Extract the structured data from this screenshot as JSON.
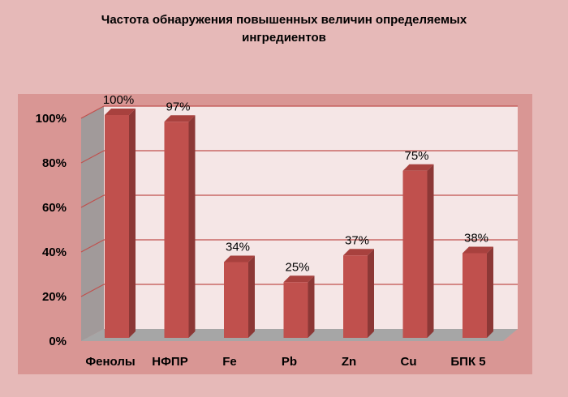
{
  "chart_data": {
    "type": "bar",
    "title": "Частота обнаружения повышенных величин определяемых ингредиентов",
    "categories": [
      "Фенолы",
      "НФПР",
      "Fe",
      "Pb",
      "Zn",
      "Cu",
      "БПК 5"
    ],
    "values": [
      100,
      97,
      34,
      25,
      37,
      75,
      38
    ],
    "data_labels": [
      "100%",
      "97%",
      "34%",
      "25%",
      "37%",
      "75%",
      "38%"
    ],
    "ylim": [
      0,
      100
    ],
    "yticks": [
      0,
      20,
      40,
      60,
      80,
      100
    ],
    "ytick_labels": [
      "0%",
      "20%",
      "40%",
      "60%",
      "80%",
      "100%"
    ],
    "xlabel": "",
    "ylabel": "",
    "grid": true,
    "legend": "none",
    "colors": {
      "page_background": "#e6b9b8",
      "plot_area": "#d99694",
      "back_wall": "#f5e6e6",
      "side_wall": "#a19a9a",
      "floor": "#a6a6a6",
      "gridline": "#c0504d",
      "bar_front": "#c0504d",
      "bar_side": "#8c3836",
      "bar_top": "#a8413e"
    }
  }
}
